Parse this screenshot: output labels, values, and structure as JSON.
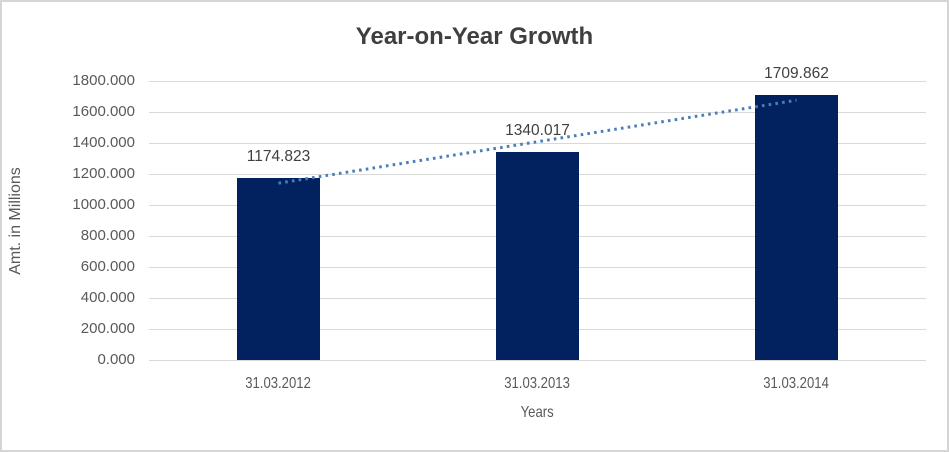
{
  "chart_data": {
    "type": "bar",
    "title": "Year-on-Year Growth",
    "categories": [
      "31.03.2012",
      "31.03.2013",
      "31.03.2014"
    ],
    "series": [
      {
        "name": "Amt. in Millions",
        "values": [
          1174.823,
          1340.017,
          1709.862
        ]
      }
    ],
    "data_labels": [
      "1174.823",
      "1340.017",
      "1709.862"
    ],
    "xlabel": "Years",
    "ylabel": "Amt. in Millions",
    "ylim": [
      0,
      1800
    ],
    "ytick_step": 200,
    "ytick_labels": [
      "0.000",
      "200.000",
      "400.000",
      "600.000",
      "800.000",
      "1000.000",
      "1200.000",
      "1400.000",
      "1600.000",
      "1800.000"
    ],
    "grid": true,
    "legend": "none",
    "trendline": {
      "type": "linear",
      "style": "dotted"
    },
    "colors": {
      "bar": "#02225F",
      "trendline": "#4A7EBB",
      "gridline": "#D9D9D9",
      "axis_text": "#595959",
      "data_label_text": "#404040",
      "title_text": "#3F3F3F",
      "frame_border": "#D5D5D5"
    }
  }
}
